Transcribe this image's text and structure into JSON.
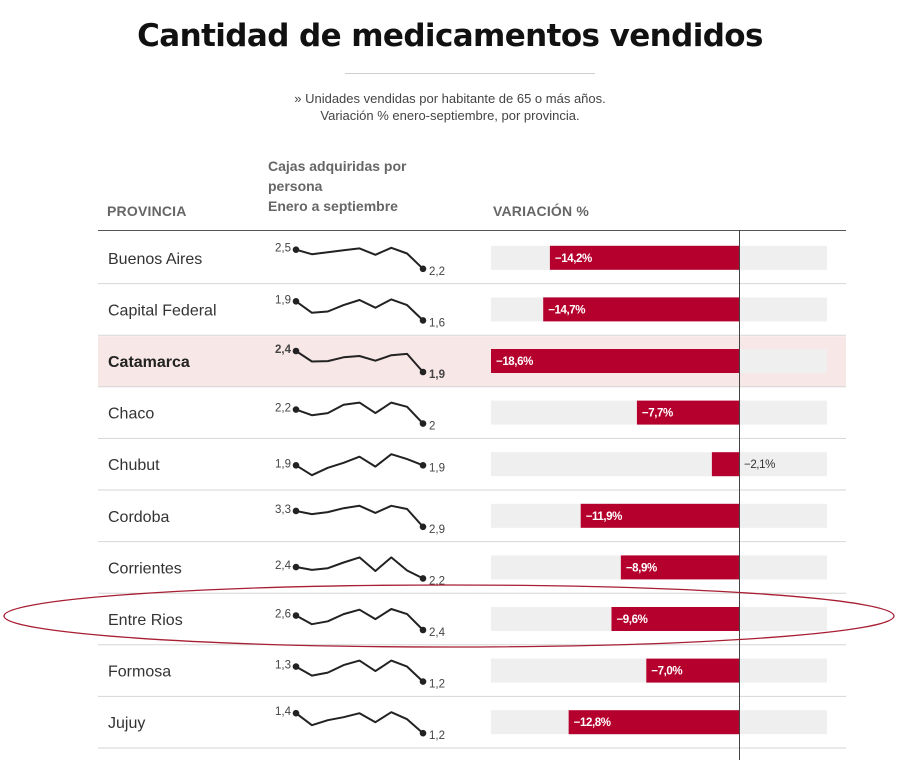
{
  "title": "Cantidad de medicamentos vendidos",
  "subtitle": {
    "line1": "» Unidades vendidas por habitante de 65 o más años.",
    "line2": "Variación % enero-septiembre, por provincia."
  },
  "columns": {
    "provincia": "PROVINCIA",
    "cajas": [
      "Cajas adquiridas por",
      "persona",
      "Enero a septiembre"
    ],
    "variacion": "VARIACIÓN %"
  },
  "colors": {
    "bar": "#b5002d",
    "track": "#efefef",
    "highlight_row": "#f8e7e7",
    "row_rule": "#d6d6d6",
    "ellipse": "#a81e32"
  },
  "chart_data": {
    "type": "bar",
    "orientation": "horizontal",
    "xlim": [
      -18.6,
      3.6
    ],
    "highlighted_row": "Catamarca",
    "circled_row": "Entre Rios",
    "rows": [
      {
        "province": "Buenos Aires",
        "start": "2,5",
        "end": "2,2",
        "variation": -14.2,
        "label": "−14,2%",
        "spark": [
          2.5,
          2.43,
          2.46,
          2.49,
          2.52,
          2.42,
          2.53,
          2.44,
          2.2
        ]
      },
      {
        "province": "Capital Federal",
        "start": "1,9",
        "end": "1,6",
        "variation": -14.7,
        "label": "−14,7%",
        "spark": [
          1.9,
          1.72,
          1.74,
          1.84,
          1.92,
          1.8,
          1.93,
          1.84,
          1.6
        ]
      },
      {
        "province": "Catamarca",
        "start": "2,4",
        "end": "1,9",
        "variation": -18.6,
        "label": "−18,6%",
        "spark": [
          2.4,
          2.15,
          2.16,
          2.25,
          2.28,
          2.17,
          2.3,
          2.33,
          1.9
        ]
      },
      {
        "province": "Chaco",
        "start": "2,2",
        "end": "2",
        "variation": -7.7,
        "label": "−7,7%",
        "spark": [
          2.2,
          2.12,
          2.15,
          2.27,
          2.3,
          2.15,
          2.3,
          2.24,
          2.0
        ]
      },
      {
        "province": "Chubut",
        "start": "1,9",
        "end": "1,9",
        "variation": -2.1,
        "label": "−2,1%",
        "spark": [
          1.9,
          1.82,
          1.88,
          1.92,
          1.97,
          1.89,
          1.99,
          1.95,
          1.9
        ]
      },
      {
        "province": "Cordoba",
        "start": "3,3",
        "end": "2,9",
        "variation": -11.9,
        "label": "−11,9%",
        "spark": [
          3.3,
          3.22,
          3.27,
          3.37,
          3.43,
          3.25,
          3.43,
          3.35,
          2.9
        ]
      },
      {
        "province": "Corrientes",
        "start": "2,4",
        "end": "2,2",
        "variation": -8.9,
        "label": "−8,9%",
        "spark": [
          2.4,
          2.35,
          2.38,
          2.48,
          2.57,
          2.33,
          2.57,
          2.34,
          2.2
        ]
      },
      {
        "province": "Entre Rios",
        "start": "2,6",
        "end": "2,4",
        "variation": -9.6,
        "label": "−9,6%",
        "spark": [
          2.6,
          2.48,
          2.52,
          2.62,
          2.68,
          2.55,
          2.69,
          2.62,
          2.4
        ]
      },
      {
        "province": "Formosa",
        "start": "1,3",
        "end": "1,2",
        "variation": -7.0,
        "label": "−7,0%",
        "spark": [
          1.3,
          1.24,
          1.26,
          1.31,
          1.34,
          1.27,
          1.34,
          1.3,
          1.2
        ]
      },
      {
        "province": "Jujuy",
        "start": "1,4",
        "end": "1,2",
        "variation": -12.8,
        "label": "−12,8%",
        "spark": [
          1.4,
          1.28,
          1.33,
          1.36,
          1.4,
          1.31,
          1.41,
          1.34,
          1.2
        ]
      }
    ]
  }
}
